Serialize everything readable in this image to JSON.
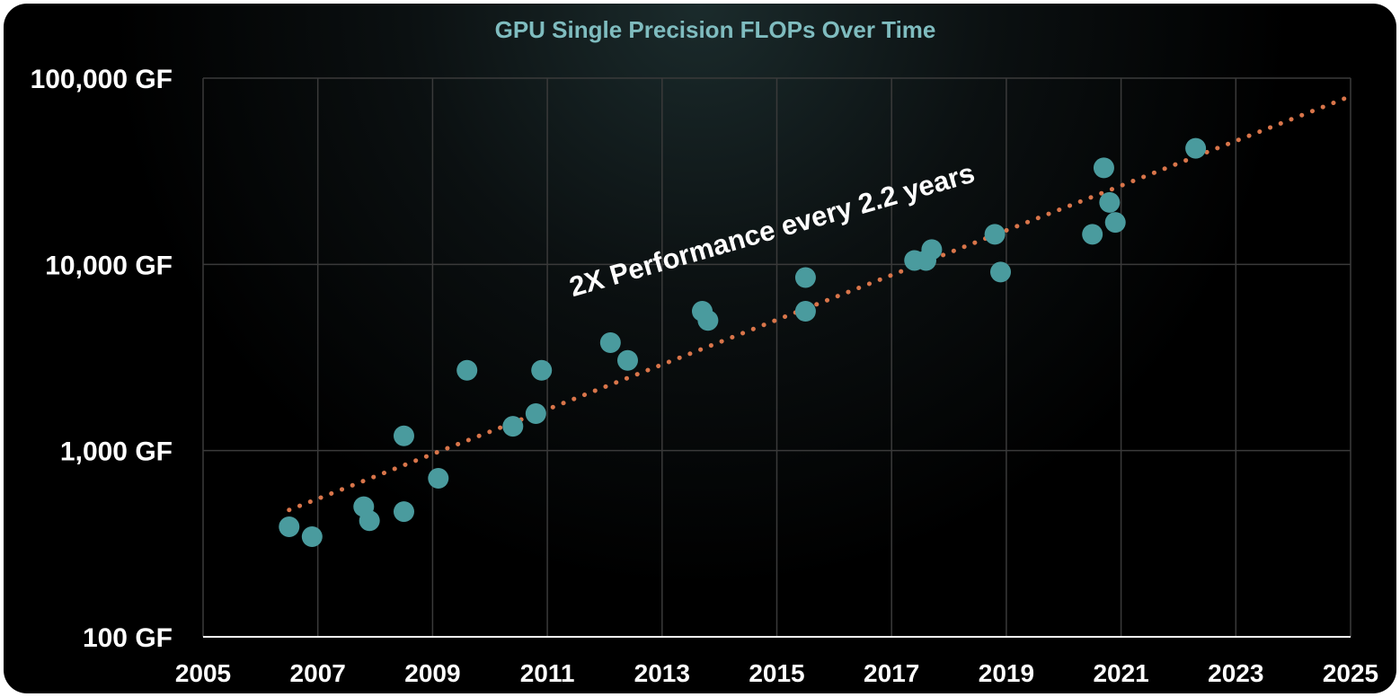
{
  "chart_data": {
    "type": "scatter",
    "title": "GPU Single Precision FLOPs Over Time",
    "xlabel": "",
    "ylabel": "",
    "y_scale": "log",
    "xlim": [
      2005,
      2025
    ],
    "ylim": [
      100,
      100000
    ],
    "x_ticks": [
      "2005",
      "2007",
      "2009",
      "2011",
      "2013",
      "2015",
      "2017",
      "2019",
      "2021",
      "2023",
      "2025"
    ],
    "y_ticks": [
      {
        "value": 100,
        "label": "100 GF"
      },
      {
        "value": 1000,
        "label": "1,000 GF"
      },
      {
        "value": 10000,
        "label": "10,000 GF"
      },
      {
        "value": 100000,
        "label": "100,000 GF"
      }
    ],
    "grid": true,
    "points": [
      {
        "x": 2006.5,
        "y": 390
      },
      {
        "x": 2006.9,
        "y": 345
      },
      {
        "x": 2007.8,
        "y": 500
      },
      {
        "x": 2007.9,
        "y": 420
      },
      {
        "x": 2008.5,
        "y": 470
      },
      {
        "x": 2008.5,
        "y": 1200
      },
      {
        "x": 2009.1,
        "y": 710
      },
      {
        "x": 2009.6,
        "y": 2700
      },
      {
        "x": 2010.4,
        "y": 1350
      },
      {
        "x": 2010.8,
        "y": 1580
      },
      {
        "x": 2010.9,
        "y": 2700
      },
      {
        "x": 2012.1,
        "y": 3800
      },
      {
        "x": 2012.4,
        "y": 3050
      },
      {
        "x": 2013.7,
        "y": 5600
      },
      {
        "x": 2013.8,
        "y": 5000
      },
      {
        "x": 2015.5,
        "y": 8500
      },
      {
        "x": 2015.5,
        "y": 5600
      },
      {
        "x": 2017.4,
        "y": 10500
      },
      {
        "x": 2017.6,
        "y": 10500
      },
      {
        "x": 2017.7,
        "y": 12000
      },
      {
        "x": 2018.8,
        "y": 14500
      },
      {
        "x": 2018.9,
        "y": 9100
      },
      {
        "x": 2020.5,
        "y": 14500
      },
      {
        "x": 2020.7,
        "y": 33000
      },
      {
        "x": 2020.8,
        "y": 21500
      },
      {
        "x": 2020.9,
        "y": 16800
      },
      {
        "x": 2022.3,
        "y": 42000
      }
    ],
    "trendline": {
      "style": "dotted",
      "x": [
        2006.5,
        2025
      ],
      "y": [
        480,
        80000
      ]
    },
    "annotation": "2X Performance every 2.2 years",
    "colors": {
      "point": "#4a9b9e",
      "trendline": "#d9754a",
      "title": "#7fbcbf",
      "text": "#ffffff",
      "grid": "#3a3a3a"
    }
  }
}
